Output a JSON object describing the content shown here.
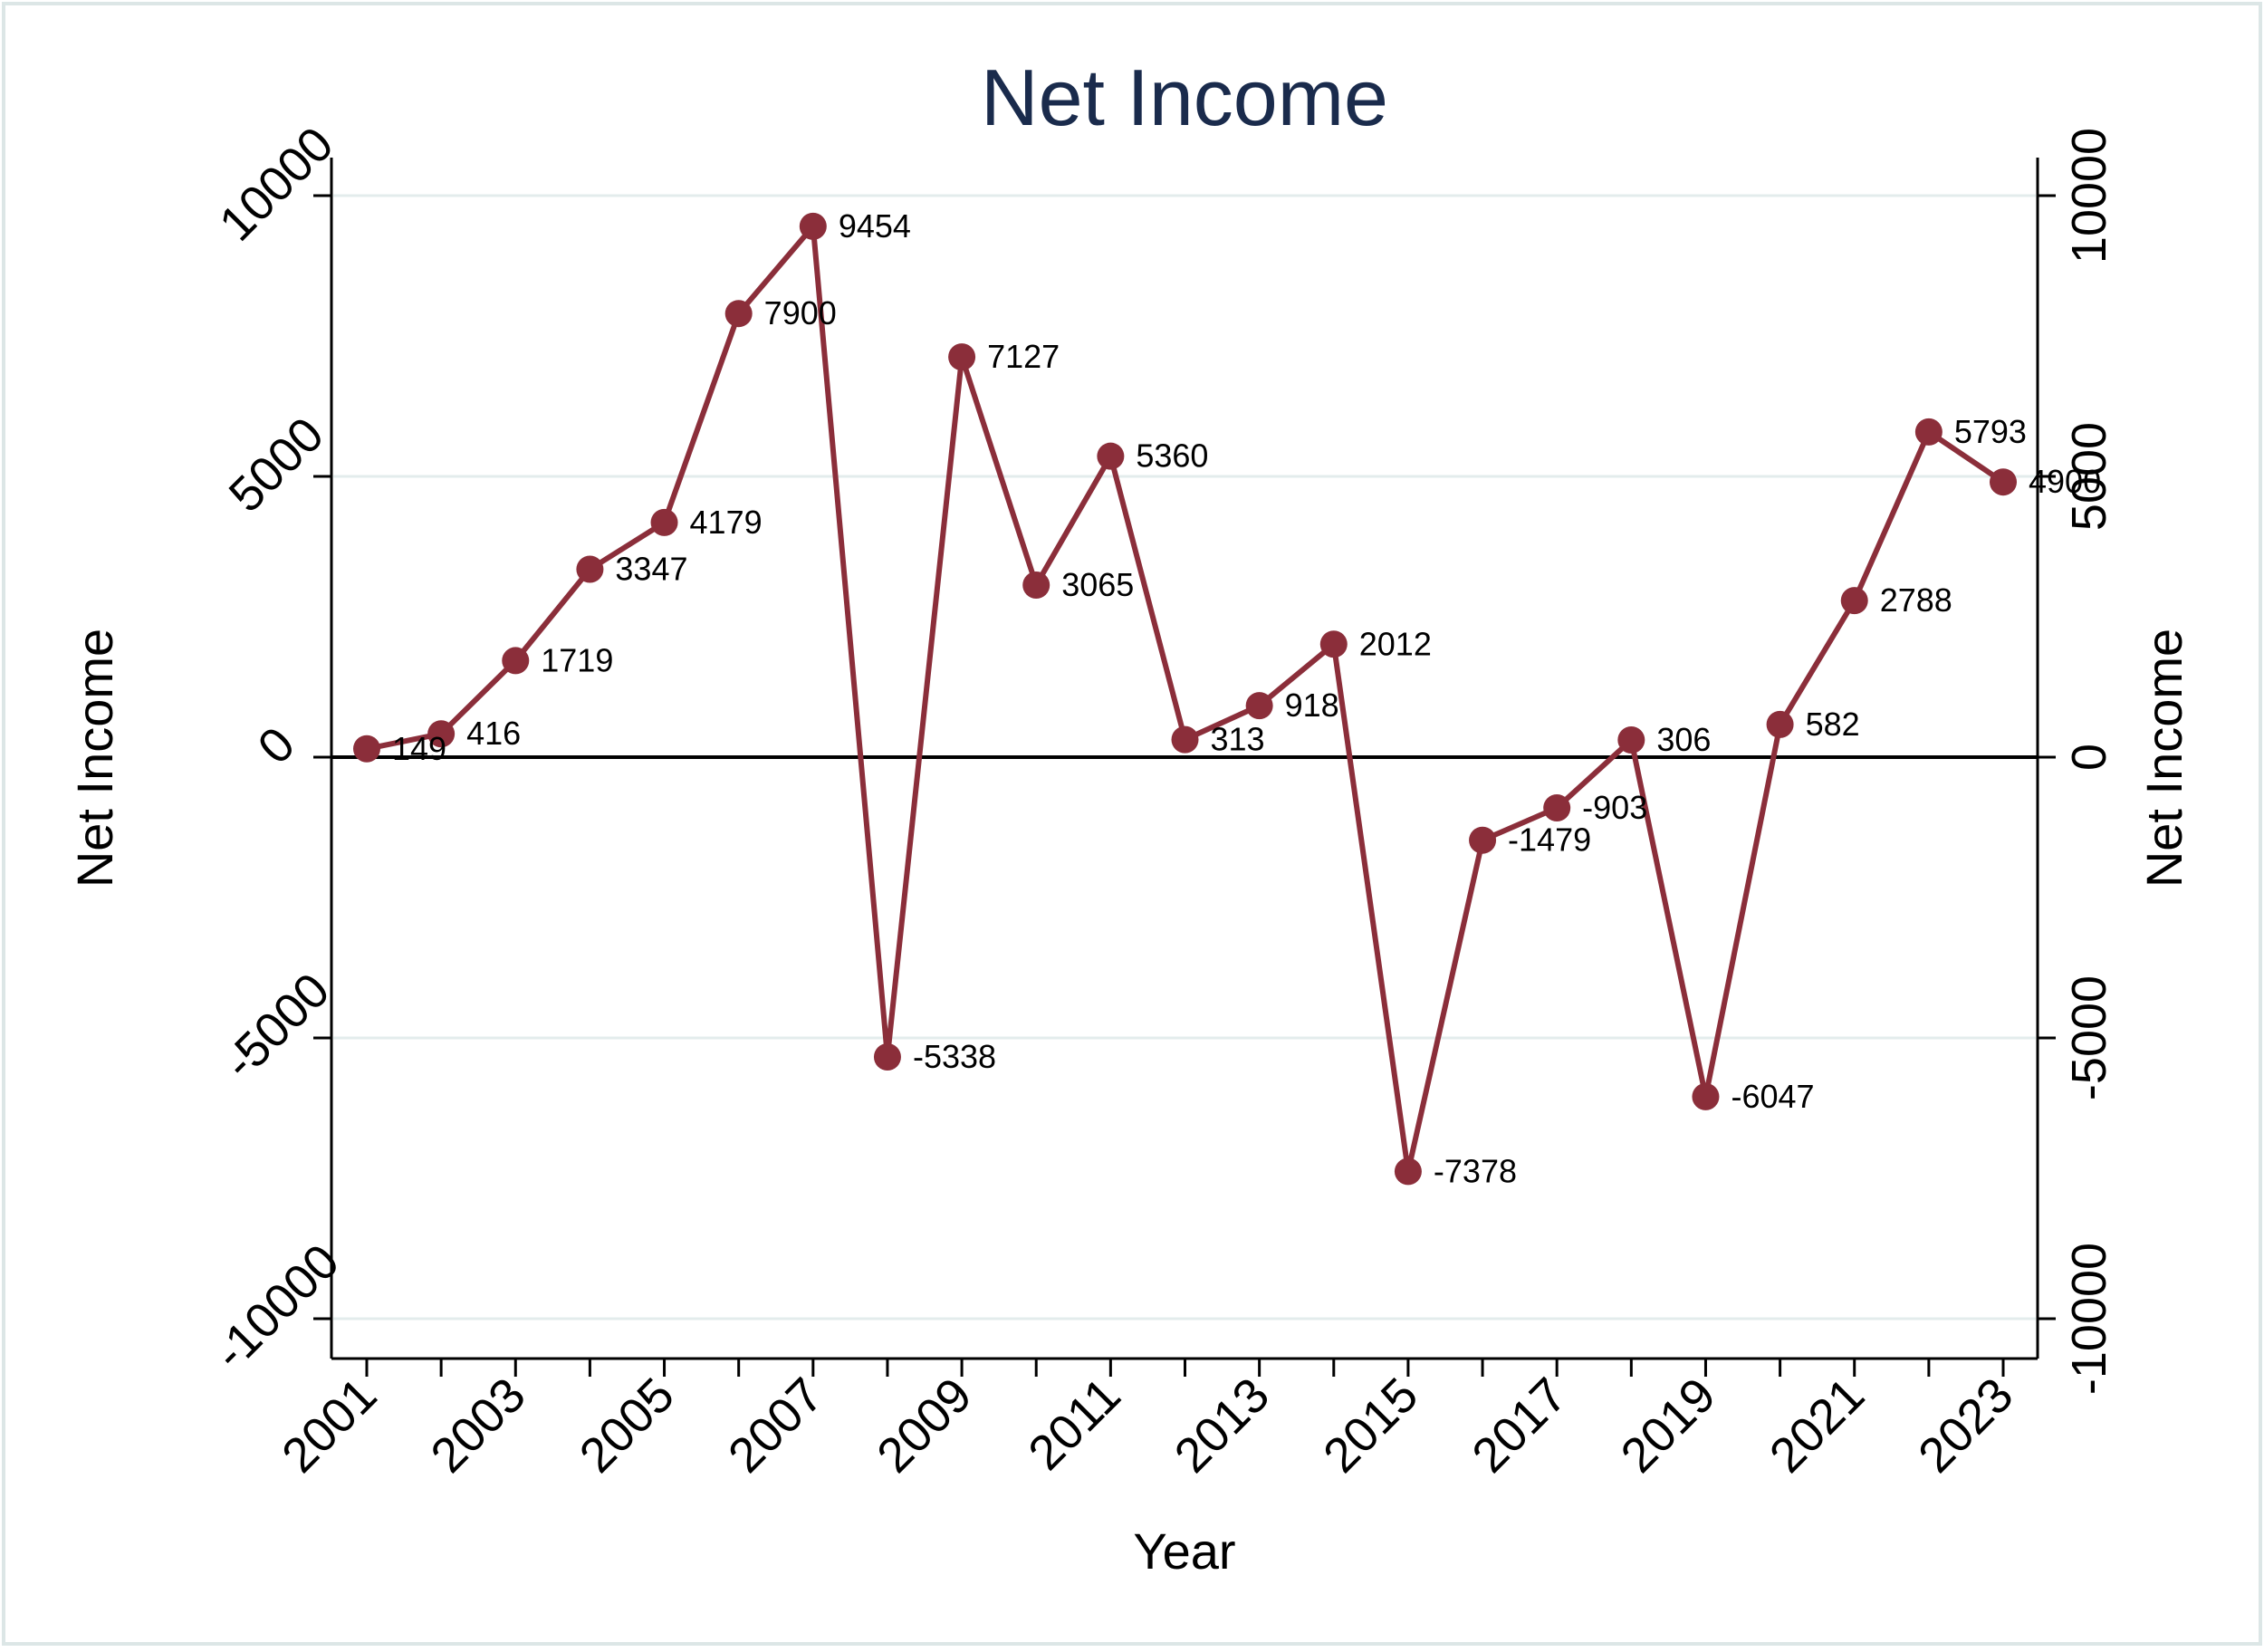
{
  "chart_data": {
    "type": "line",
    "title": "Net Income",
    "xlabel": "Year",
    "ylabel": "Net Income",
    "ylabel_right": "Net Income",
    "x": [
      2001,
      2002,
      2003,
      2004,
      2005,
      2006,
      2007,
      2008,
      2009,
      2010,
      2011,
      2012,
      2013,
      2014,
      2015,
      2016,
      2017,
      2018,
      2019,
      2020,
      2021,
      2022,
      2023
    ],
    "series": [
      {
        "values": [
          149,
          416,
          1719,
          3347,
          4179,
          7900,
          9454,
          -5338,
          7127,
          3065,
          5360,
          313,
          918,
          2012,
          -7378,
          -1479,
          -903,
          306,
          -6047,
          582,
          2788,
          5793,
          4900
        ],
        "labels": [
          "149",
          "416",
          "1719",
          "3347",
          "4179",
          "7900",
          "9454",
          "-5338",
          "7127",
          "3065",
          "5360",
          "313",
          "918",
          "2012",
          "-7378",
          "-1479",
          "-903",
          "306",
          "-6047",
          "582",
          "2788",
          "5793",
          "4900"
        ]
      }
    ],
    "xticks": [
      2001,
      2003,
      2005,
      2007,
      2009,
      2011,
      2013,
      2015,
      2017,
      2019,
      2021,
      2023
    ],
    "xtick_labels": [
      "2001",
      "2003",
      "2005",
      "2007",
      "2009",
      "2011",
      "2013",
      "2015",
      "2017",
      "2019",
      "2021",
      "2023"
    ],
    "yticks": [
      -10000,
      -5000,
      0,
      5000,
      10000
    ],
    "ytick_labels": [
      "-10000",
      "-5000",
      "0",
      "5000",
      "10000"
    ],
    "xlim": [
      2000.5,
      2023.5
    ],
    "ylim": [
      -10700,
      10700
    ],
    "grid": true,
    "reference_line": 0,
    "colors": {
      "line": "#8b2e3a",
      "marker": "#8b2e3a",
      "title": "#1a2b4c",
      "grid": "#e3ecec",
      "axis": "#000000",
      "border": "#dce6e6"
    }
  }
}
